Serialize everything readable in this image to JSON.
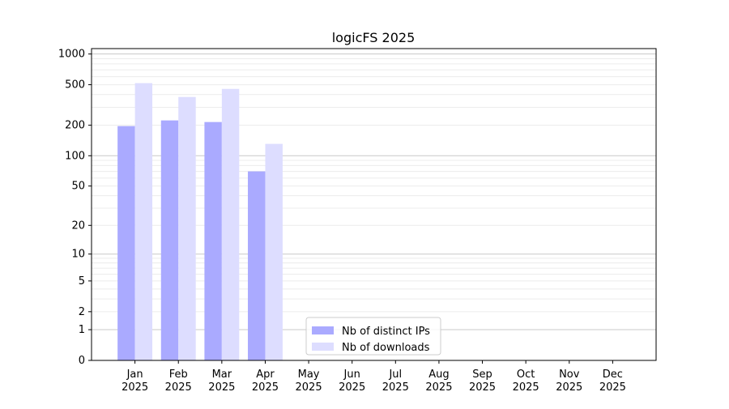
{
  "chart_data": {
    "type": "bar",
    "title": "logicFS 2025",
    "xlabel": "",
    "ylabel": "",
    "y_scale": "log(1+y)",
    "ylim": [
      0,
      1130
    ],
    "yticks": [
      0,
      1,
      2,
      5,
      10,
      20,
      50,
      100,
      200,
      500,
      1000
    ],
    "grid": true,
    "legend_position": "bottom-center",
    "categories": [
      "Jan\n2025",
      "Feb\n2025",
      "Mar\n2025",
      "Apr\n2025",
      "May\n2025",
      "Jun\n2025",
      "Jul\n2025",
      "Aug\n2025",
      "Sep\n2025",
      "Oct\n2025",
      "Nov\n2025",
      "Dec\n2025"
    ],
    "series": [
      {
        "name": "Nb of distinct IPs",
        "color": "#aaaaff",
        "values": [
          196,
          223,
          215,
          70,
          0,
          0,
          0,
          0,
          0,
          0,
          0,
          0
        ]
      },
      {
        "name": "Nb of downloads",
        "color": "#ddddff",
        "values": [
          518,
          379,
          455,
          131,
          0,
          0,
          0,
          0,
          0,
          0,
          0,
          0
        ]
      }
    ]
  }
}
